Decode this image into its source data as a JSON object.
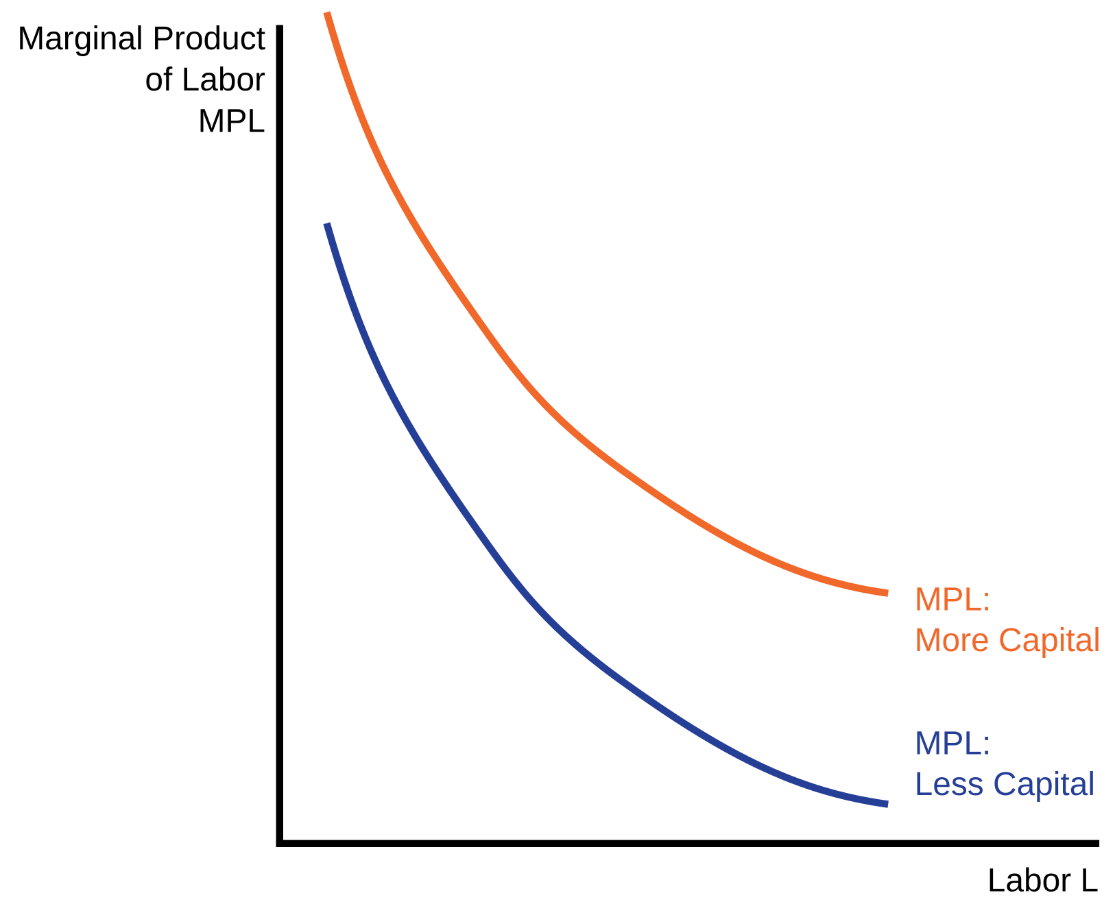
{
  "y_axis_label": [
    "Marginal Product",
    "of Labor",
    "MPL"
  ],
  "x_axis_label": "Labor L",
  "curves": [
    {
      "label": [
        "MPL:",
        "More Capital"
      ]
    },
    {
      "label": [
        "MPL:",
        "Less Capital"
      ]
    }
  ]
}
